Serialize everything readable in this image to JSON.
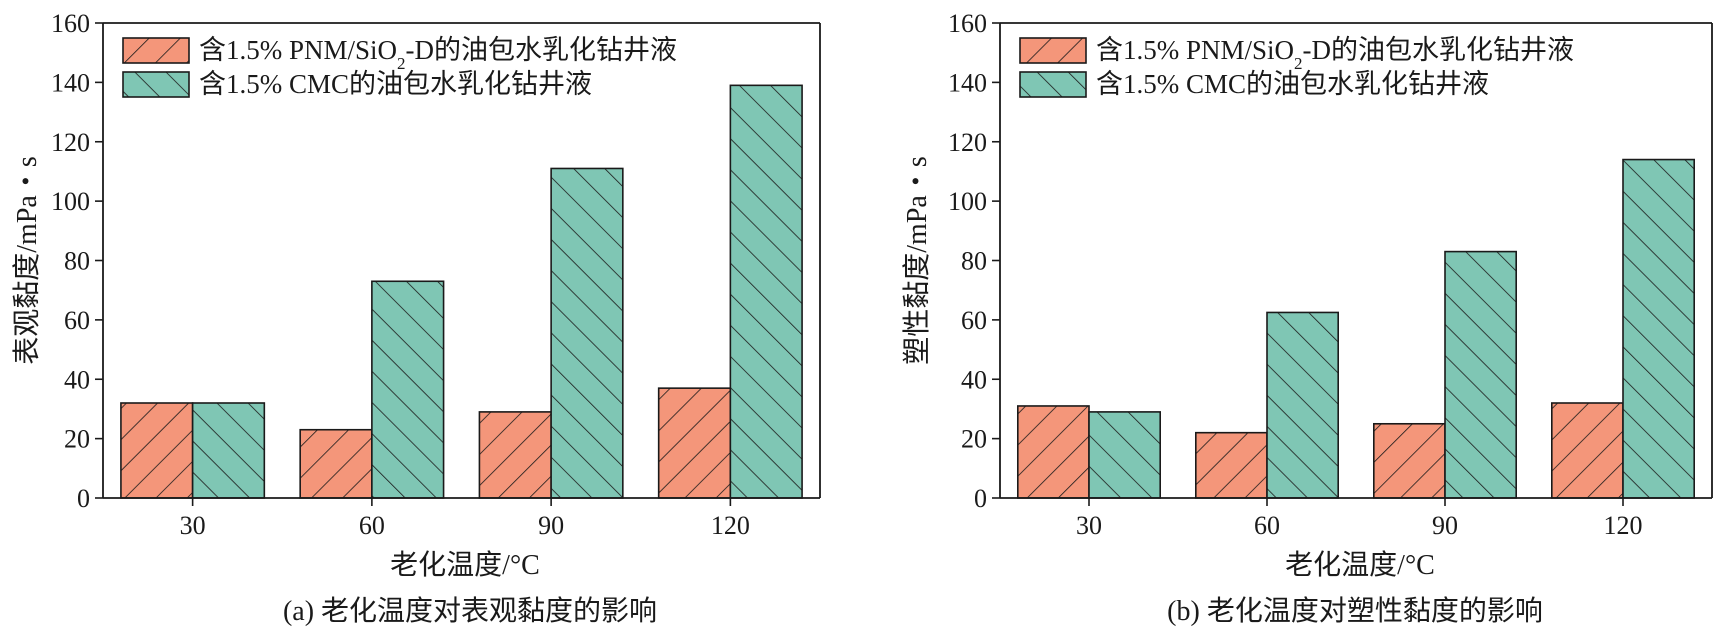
{
  "colors": {
    "series_a": "#F4967A",
    "series_b": "#7FC6B4",
    "ink": "#1a1a1a"
  },
  "chart_data": [
    {
      "type": "bar",
      "caption": "(a) 老化温度对表观黏度的影响",
      "xlabel": "老化温度/°C",
      "ylabel": "表观黏度/mPa・s",
      "ylim": [
        0,
        160
      ],
      "yticks": [
        0,
        20,
        40,
        60,
        80,
        100,
        120,
        140,
        160
      ],
      "categories": [
        "30",
        "60",
        "90",
        "120"
      ],
      "legend_position": "top-left",
      "series": [
        {
          "name_prefix": "含1.5% PNM/SiO",
          "name_sub": "2",
          "name_suffix": "-D的油包水乳化钻井液",
          "values": [
            32,
            23,
            29,
            37
          ],
          "hatch": "forward"
        },
        {
          "name_prefix": "含1.5% CMC的油包水乳化钻井液",
          "name_sub": "",
          "name_suffix": "",
          "values": [
            32,
            73,
            111,
            139
          ],
          "hatch": "backward"
        }
      ]
    },
    {
      "type": "bar",
      "caption": "(b) 老化温度对塑性黏度的影响",
      "xlabel": "老化温度/°C",
      "ylabel": "塑性黏度/mPa・s",
      "ylim": [
        0,
        160
      ],
      "yticks": [
        0,
        20,
        40,
        60,
        80,
        100,
        120,
        140,
        160
      ],
      "categories": [
        "30",
        "60",
        "90",
        "120"
      ],
      "legend_position": "top-left",
      "series": [
        {
          "name_prefix": "含1.5% PNM/SiO",
          "name_sub": "2",
          "name_suffix": "-D的油包水乳化钻井液",
          "values": [
            31,
            22,
            25,
            32
          ],
          "hatch": "forward"
        },
        {
          "name_prefix": "含1.5% CMC的油包水乳化钻井液",
          "name_sub": "",
          "name_suffix": "",
          "values": [
            29,
            62.5,
            83,
            114
          ],
          "hatch": "backward"
        }
      ]
    }
  ]
}
